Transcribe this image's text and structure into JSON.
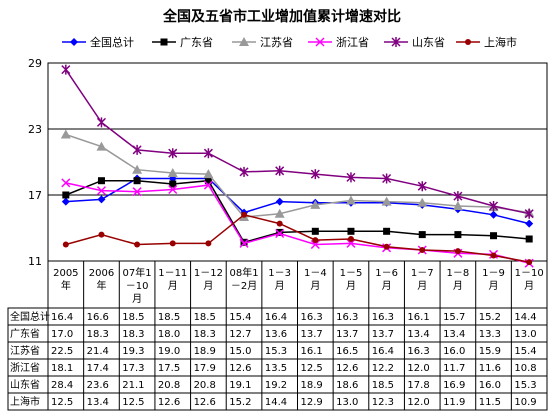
{
  "chart_data": {
    "type": "line",
    "title": "全国及五省市工业增加值累计增速对比",
    "x_labels": [
      [
        "2005",
        "年"
      ],
      [
        "2006",
        "年"
      ],
      [
        "07年1",
        "－10",
        "月"
      ],
      [
        "1－11",
        "月"
      ],
      [
        "1－12",
        "月"
      ],
      [
        "08年1",
        "－2月"
      ],
      [
        "1－3",
        "月"
      ],
      [
        "1－4",
        "月"
      ],
      [
        "1－5",
        "月"
      ],
      [
        "1－6",
        "月"
      ],
      [
        "1－7",
        "月"
      ],
      [
        "1－8",
        "月"
      ],
      [
        "1－9",
        "月"
      ],
      [
        "1－10",
        "月"
      ]
    ],
    "y_ticks": [
      "11",
      "17",
      "23",
      "29"
    ],
    "ylim": [
      11,
      29
    ],
    "grid": "horizontal",
    "legend_position": "top",
    "series": [
      {
        "name": "全国总计",
        "color": "#0000ff",
        "marker": "diamond",
        "values": [
          16.4,
          16.6,
          18.5,
          18.5,
          18.5,
          15.4,
          16.4,
          16.3,
          16.3,
          16.3,
          16.1,
          15.7,
          15.2,
          14.4
        ],
        "row_values": [
          "16.4",
          "16.6",
          "18.5",
          "18.5",
          "18.5",
          "15.4",
          "16.4",
          "16.3",
          "16.3",
          "16.3",
          "16.1",
          "15.7",
          "15.2",
          "14.4"
        ]
      },
      {
        "name": "广东省",
        "color": "#000000",
        "marker": "square",
        "values": [
          17.0,
          18.3,
          18.3,
          18.0,
          18.3,
          12.7,
          13.6,
          13.7,
          13.7,
          13.7,
          13.4,
          13.4,
          13.3,
          13.0
        ],
        "row_values": [
          "17.0",
          "18.3",
          "18.3",
          "18.0",
          "18.3",
          "12.7",
          "13.6",
          "13.7",
          "13.7",
          "13.7",
          "13.4",
          "13.4",
          "13.3",
          "13.0"
        ]
      },
      {
        "name": "江苏省",
        "color": "#999999",
        "marker": "triangle",
        "values": [
          22.5,
          21.4,
          19.3,
          19.0,
          18.9,
          15.0,
          15.3,
          16.1,
          16.5,
          16.4,
          16.3,
          16.0,
          15.9,
          15.4
        ],
        "row_values": [
          "22.5",
          "21.4",
          "19.3",
          "19.0",
          "18.9",
          "15.0",
          "15.3",
          "16.1",
          "16.5",
          "16.4",
          "16.3",
          "16.0",
          "15.9",
          "15.4"
        ]
      },
      {
        "name": "浙江省",
        "color": "#ff00ff",
        "marker": "x",
        "values": [
          18.1,
          17.4,
          17.3,
          17.5,
          17.9,
          12.6,
          13.5,
          12.5,
          12.6,
          12.2,
          12.0,
          11.7,
          11.6,
          10.8
        ],
        "row_values": [
          "18.1",
          "17.4",
          "17.3",
          "17.5",
          "17.9",
          "12.6",
          "13.5",
          "12.5",
          "12.6",
          "12.2",
          "12.0",
          "11.7",
          "11.6",
          "10.8"
        ]
      },
      {
        "name": "山东省",
        "color": "#800080",
        "marker": "star",
        "values": [
          28.4,
          23.6,
          21.1,
          20.8,
          20.8,
          19.1,
          19.2,
          18.9,
          18.6,
          18.5,
          17.8,
          16.9,
          16.0,
          15.3
        ],
        "row_values": [
          "28.4",
          "23.6",
          "21.1",
          "20.8",
          "20.8",
          "19.1",
          "19.2",
          "18.9",
          "18.6",
          "18.5",
          "17.8",
          "16.9",
          "16.0",
          "15.3"
        ]
      },
      {
        "name": "上海市",
        "color": "#990000",
        "marker": "circle",
        "values": [
          12.5,
          13.4,
          12.5,
          12.6,
          12.6,
          15.2,
          14.4,
          12.9,
          13.0,
          12.3,
          12.0,
          11.9,
          11.5,
          10.9
        ],
        "row_values": [
          "12.5",
          "13.4",
          "12.5",
          "12.6",
          "12.6",
          "15.2",
          "14.4",
          "12.9",
          "13.0",
          "12.3",
          "12.0",
          "11.9",
          "11.5",
          "10.9"
        ]
      }
    ]
  }
}
